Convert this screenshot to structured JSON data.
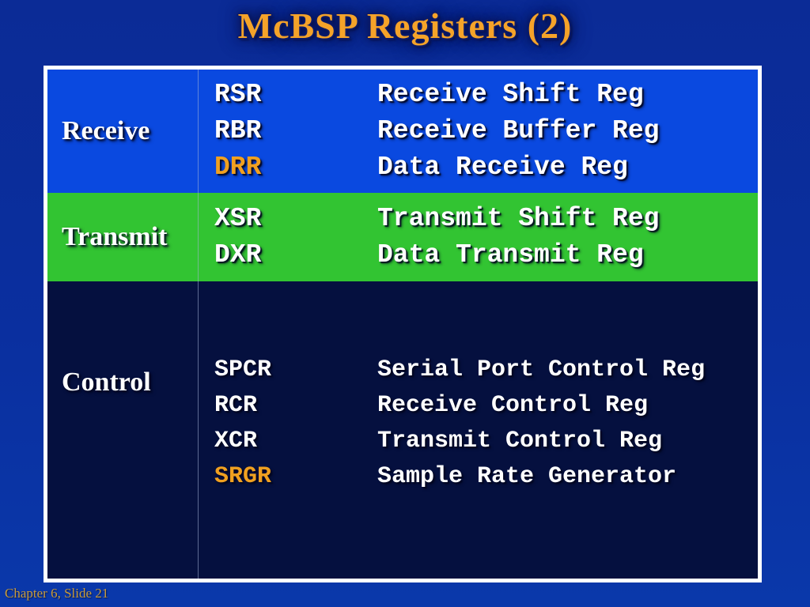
{
  "slide": {
    "title": "McBSP Registers (2)",
    "footer": "Chapter 6, Slide 21"
  },
  "colors": {
    "background_top": "#0b2b96",
    "background_bottom": "#0a38aa",
    "receive_row_bg": "#0a49e0",
    "transmit_row_bg": "#32c432",
    "control_row_bg": "#05103f",
    "table_border": "#ffffff",
    "title_text": "#f5a329",
    "body_text": "#ffffff",
    "highlight_text": "#f0a020",
    "footer_text": "#c89b3c"
  },
  "table": {
    "rows": [
      {
        "label": "Receive",
        "entries": [
          {
            "name": "RSR",
            "desc": "Receive Shift Reg",
            "highlight": false
          },
          {
            "name": "RBR",
            "desc": "Receive Buffer Reg",
            "highlight": false
          },
          {
            "name": "DRR",
            "desc": "Data Receive Reg",
            "highlight": true
          }
        ]
      },
      {
        "label": "Transmit",
        "entries": [
          {
            "name": "XSR",
            "desc": "Transmit Shift Reg",
            "highlight": false
          },
          {
            "name": "DXR",
            "desc": "Data Transmit Reg",
            "highlight": false
          }
        ]
      },
      {
        "label": "Control",
        "entries": [
          {
            "name": "SPCR",
            "desc": "Serial Port Control Reg",
            "highlight": false
          },
          {
            "name": "RCR",
            "desc": "Receive Control Reg",
            "highlight": false
          },
          {
            "name": "XCR",
            "desc": "Transmit Control Reg",
            "highlight": false
          },
          {
            "name": "SRGR",
            "desc": "Sample Rate Generator",
            "highlight": true
          }
        ]
      }
    ]
  }
}
